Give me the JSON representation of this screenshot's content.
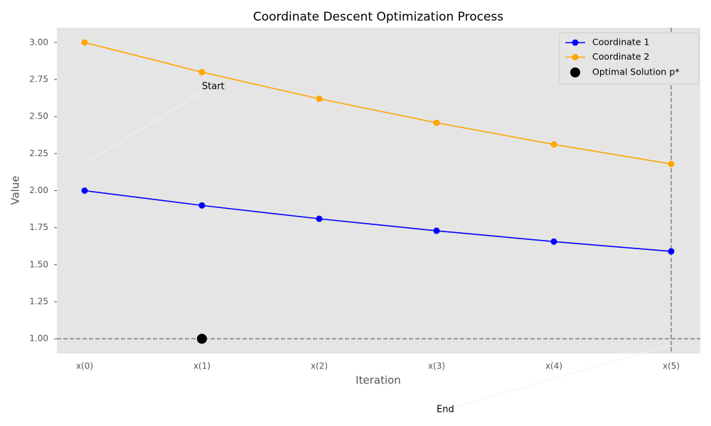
{
  "chart_data": {
    "type": "line",
    "title": "Coordinate Descent Optimization Process",
    "x_label": "Iteration",
    "y_label": "Value",
    "categories": [
      "x(0)",
      "x(1)",
      "x(2)",
      "x(3)",
      "x(4)",
      "x(5)"
    ],
    "series": [
      {
        "name": "Coordinate 1",
        "color": "#0000ff",
        "values": [
          2.0,
          1.9,
          1.81,
          1.729,
          1.656,
          1.59
        ]
      },
      {
        "name": "Coordinate 2",
        "color": "#ffa500",
        "values": [
          3.0,
          2.8,
          2.62,
          2.458,
          2.312,
          2.18
        ]
      },
      {
        "name": "Optimal Solution p*",
        "color": "#000000",
        "type": "scatter",
        "values": [
          null,
          1.0,
          null,
          null,
          null,
          null
        ]
      }
    ],
    "hlines": [
      1.0
    ],
    "vlines": [
      5
    ],
    "annotations": [
      "Start",
      "End"
    ],
    "ylim": [
      0.9,
      3.1
    ],
    "yticks": [
      {
        "value": 1,
        "label": "1.00"
      },
      {
        "value": 1.25,
        "label": "1.25"
      },
      {
        "value": 1.5,
        "label": "1.50"
      },
      {
        "value": 1.75,
        "label": "1.75"
      },
      {
        "value": 2,
        "label": "2.00"
      },
      {
        "value": 2.25,
        "label": "2.25"
      },
      {
        "value": 2.5,
        "label": "2.50"
      },
      {
        "value": 2.75,
        "label": "2.75"
      },
      {
        "value": 3,
        "label": "3.00"
      }
    ],
    "legend": "upper right",
    "background": "#e5e5e5"
  }
}
